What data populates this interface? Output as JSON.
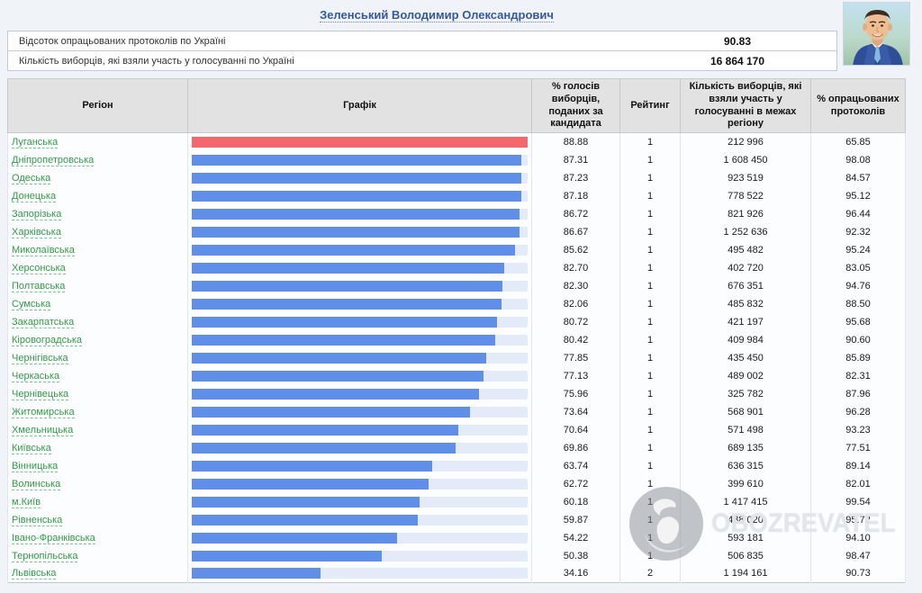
{
  "header": {
    "candidate_name": "Зеленський Володимир Олександрович"
  },
  "summary": {
    "rows": [
      {
        "label": "Відсоток опрацьованих протоколів по Україні",
        "value": "90.83"
      },
      {
        "label": "Кількість виборців, які взяли участь у голосуванні по Україні",
        "value": "16 864 170"
      }
    ]
  },
  "table": {
    "columns": [
      "Регіон",
      "Графік",
      "% голосів виборців, поданих за кандидата",
      "Рейтинг",
      "Кількість виборців, які взяли участь у голосуванні в межах регіону",
      "% опрацьованих протоколів"
    ],
    "rows": [
      {
        "region": "Луганська",
        "percent": "88.88",
        "rating": "1",
        "voters": "212 996",
        "protocols": "65.85",
        "bar_color": "red"
      },
      {
        "region": "Дніпропетровська",
        "percent": "87.31",
        "rating": "1",
        "voters": "1 608 450",
        "protocols": "98.08",
        "bar_color": "blue"
      },
      {
        "region": "Одеська",
        "percent": "87.23",
        "rating": "1",
        "voters": "923 519",
        "protocols": "84.57",
        "bar_color": "blue"
      },
      {
        "region": "Донецька",
        "percent": "87.18",
        "rating": "1",
        "voters": "778 522",
        "protocols": "95.12",
        "bar_color": "blue"
      },
      {
        "region": "Запорізька",
        "percent": "86.72",
        "rating": "1",
        "voters": "821 926",
        "protocols": "96.44",
        "bar_color": "blue"
      },
      {
        "region": "Харківська",
        "percent": "86.67",
        "rating": "1",
        "voters": "1 252 636",
        "protocols": "92.32",
        "bar_color": "blue"
      },
      {
        "region": "Миколаївська",
        "percent": "85.62",
        "rating": "1",
        "voters": "495 482",
        "protocols": "95.24",
        "bar_color": "blue"
      },
      {
        "region": "Херсонська",
        "percent": "82.70",
        "rating": "1",
        "voters": "402 720",
        "protocols": "83.05",
        "bar_color": "blue"
      },
      {
        "region": "Полтавська",
        "percent": "82.30",
        "rating": "1",
        "voters": "676 351",
        "protocols": "94.76",
        "bar_color": "blue"
      },
      {
        "region": "Сумська",
        "percent": "82.06",
        "rating": "1",
        "voters": "485 832",
        "protocols": "88.50",
        "bar_color": "blue"
      },
      {
        "region": "Закарпатська",
        "percent": "80.72",
        "rating": "1",
        "voters": "421 197",
        "protocols": "95.68",
        "bar_color": "blue"
      },
      {
        "region": "Кіровоградська",
        "percent": "80.42",
        "rating": "1",
        "voters": "409 984",
        "protocols": "90.60",
        "bar_color": "blue"
      },
      {
        "region": "Чернігівська",
        "percent": "77.85",
        "rating": "1",
        "voters": "435 450",
        "protocols": "85.89",
        "bar_color": "blue"
      },
      {
        "region": "Черкаська",
        "percent": "77.13",
        "rating": "1",
        "voters": "489 002",
        "protocols": "82.31",
        "bar_color": "blue"
      },
      {
        "region": "Чернівецька",
        "percent": "75.96",
        "rating": "1",
        "voters": "325 782",
        "protocols": "87.96",
        "bar_color": "blue"
      },
      {
        "region": "Житомирська",
        "percent": "73.64",
        "rating": "1",
        "voters": "568 901",
        "protocols": "96.28",
        "bar_color": "blue"
      },
      {
        "region": "Хмельницька",
        "percent": "70.64",
        "rating": "1",
        "voters": "571 498",
        "protocols": "93.23",
        "bar_color": "blue"
      },
      {
        "region": "Київська",
        "percent": "69.86",
        "rating": "1",
        "voters": "689 135",
        "protocols": "77.51",
        "bar_color": "blue"
      },
      {
        "region": "Вінницька",
        "percent": "63.74",
        "rating": "1",
        "voters": "636 315",
        "protocols": "89.14",
        "bar_color": "blue"
      },
      {
        "region": "Волинська",
        "percent": "62.72",
        "rating": "1",
        "voters": "399 610",
        "protocols": "82.01",
        "bar_color": "blue"
      },
      {
        "region": "м.Київ",
        "percent": "60.18",
        "rating": "1",
        "voters": "1 417 415",
        "protocols": "99.54",
        "bar_color": "blue"
      },
      {
        "region": "Рівненська",
        "percent": "59.87",
        "rating": "1",
        "voters": "488 020",
        "protocols": "95.72",
        "bar_color": "blue"
      },
      {
        "region": "Івано-Франківська",
        "percent": "54.22",
        "rating": "1",
        "voters": "593 181",
        "protocols": "94.10",
        "bar_color": "blue"
      },
      {
        "region": "Тернопільська",
        "percent": "50.38",
        "rating": "1",
        "voters": "506 835",
        "protocols": "98.47",
        "bar_color": "blue"
      },
      {
        "region": "Львівська",
        "percent": "34.16",
        "rating": "2",
        "voters": "1 194 161",
        "protocols": "90.73",
        "bar_color": "blue"
      }
    ],
    "bar_scale_max": 88.88
  },
  "watermark": {
    "text": "OBOZREVATEL"
  },
  "colors": {
    "bar_blue": "#5f8fe8",
    "bar_red": "#f4676d",
    "bar_track": "#e4ebf8",
    "region_link_green": "#2f9b45",
    "title_blue": "#35599e",
    "header_gray": "#e2e2e2"
  }
}
